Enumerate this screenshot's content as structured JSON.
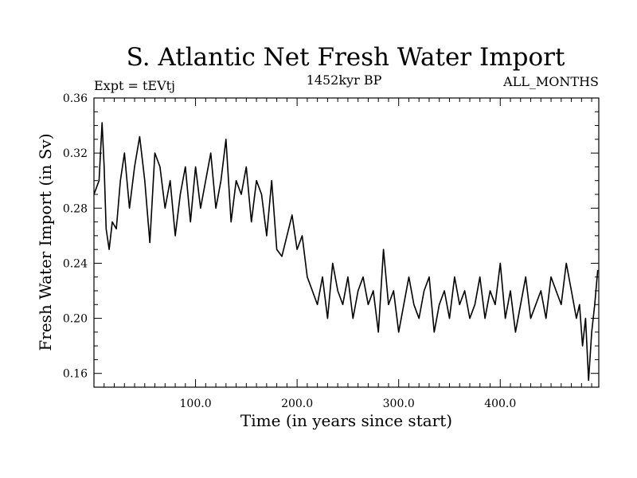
{
  "chart_data": {
    "type": "line",
    "title": "S. Atlantic Net Fresh Water Import",
    "subtitle_left": "Expt = tEVtj",
    "subtitle_center": "1452kyr BP",
    "subtitle_right": "ALL_MONTHS",
    "xlabel": "Time (in years since start)",
    "ylabel": "Fresh Water Import (in Sv)",
    "xlim": [
      0,
      497
    ],
    "ylim": [
      0.15,
      0.36
    ],
    "x_ticks": [
      100,
      200,
      300,
      400
    ],
    "x_tick_labels": [
      "100.0",
      "200.0",
      "300.0",
      "400.0"
    ],
    "y_ticks": [
      0.16,
      0.2,
      0.24,
      0.28,
      0.32,
      0.36
    ],
    "y_tick_labels": [
      "0.16",
      "0.20",
      "0.24",
      "0.28",
      "0.32",
      "0.36"
    ],
    "grid": false,
    "series": [
      {
        "name": "Fresh Water Import",
        "color": "#000000",
        "x": [
          0,
          5,
          8,
          10,
          12,
          15,
          18,
          22,
          26,
          30,
          35,
          40,
          45,
          50,
          55,
          60,
          65,
          70,
          75,
          80,
          85,
          90,
          95,
          100,
          105,
          110,
          115,
          120,
          125,
          130,
          135,
          140,
          145,
          150,
          155,
          160,
          165,
          170,
          175,
          180,
          185,
          190,
          195,
          200,
          205,
          210,
          215,
          220,
          225,
          230,
          235,
          240,
          245,
          250,
          255,
          260,
          265,
          270,
          275,
          280,
          285,
          290,
          295,
          300,
          305,
          310,
          315,
          320,
          325,
          330,
          335,
          340,
          345,
          350,
          355,
          360,
          365,
          370,
          375,
          380,
          385,
          390,
          395,
          400,
          405,
          410,
          415,
          420,
          425,
          430,
          435,
          440,
          445,
          450,
          455,
          460,
          465,
          470,
          475,
          478,
          481,
          484,
          487,
          490,
          493,
          496
        ],
        "y": [
          0.29,
          0.3,
          0.342,
          0.31,
          0.265,
          0.25,
          0.27,
          0.265,
          0.3,
          0.32,
          0.28,
          0.31,
          0.332,
          0.3,
          0.255,
          0.32,
          0.31,
          0.28,
          0.3,
          0.26,
          0.29,
          0.31,
          0.27,
          0.31,
          0.28,
          0.3,
          0.32,
          0.28,
          0.3,
          0.33,
          0.27,
          0.3,
          0.29,
          0.31,
          0.27,
          0.3,
          0.29,
          0.26,
          0.3,
          0.25,
          0.245,
          0.26,
          0.275,
          0.25,
          0.26,
          0.23,
          0.22,
          0.21,
          0.23,
          0.2,
          0.24,
          0.22,
          0.21,
          0.23,
          0.2,
          0.22,
          0.23,
          0.21,
          0.22,
          0.19,
          0.25,
          0.21,
          0.22,
          0.19,
          0.21,
          0.23,
          0.21,
          0.2,
          0.22,
          0.23,
          0.19,
          0.21,
          0.22,
          0.2,
          0.23,
          0.21,
          0.22,
          0.2,
          0.21,
          0.23,
          0.2,
          0.22,
          0.21,
          0.24,
          0.2,
          0.22,
          0.19,
          0.21,
          0.23,
          0.2,
          0.21,
          0.22,
          0.2,
          0.23,
          0.22,
          0.21,
          0.24,
          0.22,
          0.2,
          0.21,
          0.18,
          0.2,
          0.155,
          0.19,
          0.21,
          0.235
        ]
      }
    ]
  }
}
